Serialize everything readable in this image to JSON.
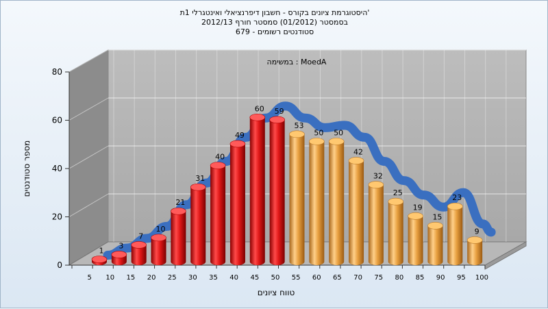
{
  "chart_data": {
    "type": "bar",
    "title_lines": [
      "היסטוגרמת ציונים בקורס - חשבון דיפרנציאלי ואינטגרלי 1ת'",
      "בסמסטר   (01/2012)  סמסטר חורף  2012/13",
      "סטודנטים רשומים - 679"
    ],
    "annotation": "במשימה : MoedA",
    "xlabel": "טווח ציונים",
    "ylabel": "מספר סטודנטים",
    "ylim": [
      0,
      80
    ],
    "yticks": [
      0,
      20,
      40,
      60,
      80
    ],
    "grid": true,
    "categories": [
      "5",
      "10",
      "15",
      "20",
      "25",
      "30",
      "35",
      "40",
      "45",
      "50",
      "55",
      "60",
      "65",
      "70",
      "75",
      "80",
      "85",
      "90",
      "95",
      "100"
    ],
    "values": [
      1,
      3,
      7,
      10,
      21,
      31,
      40,
      49,
      60,
      59,
      53,
      50,
      50,
      42,
      32,
      25,
      19,
      15,
      23,
      9
    ],
    "bar_colors": {
      "fail": "#e01818",
      "pass": "#e8a040"
    },
    "fail_count": 10,
    "trend_line_color": "#3a6fc0",
    "trend_line": [
      1,
      4,
      8,
      13,
      22,
      31,
      40,
      50,
      58,
      63,
      58,
      54,
      55,
      50,
      40,
      32,
      26,
      21,
      27,
      14
    ]
  }
}
